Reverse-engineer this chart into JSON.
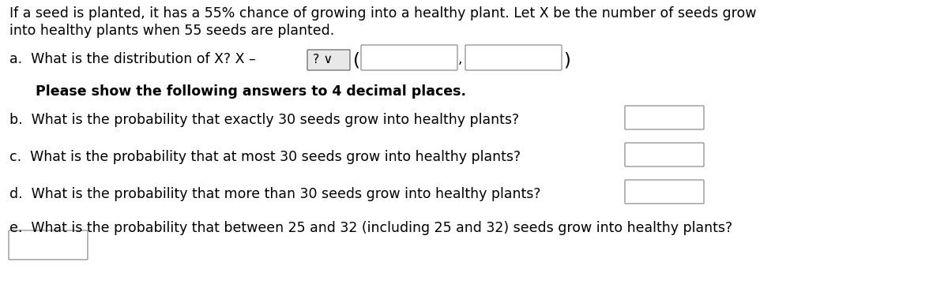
{
  "background_color": "#ffffff",
  "title_line1": "If a seed is planted, it has a 55% chance of growing into a healthy plant. Let X be the number of seeds grow",
  "title_line2": "into healthy plants when 55 seeds are planted.",
  "question_a_text": "a.  What is the distribution of X? X –",
  "dropdown_label": "? ∨",
  "paren_open": "(",
  "paren_close": ")",
  "comma": ",",
  "bold_line": "Please show the following answers to 4 decimal places.",
  "question_b": "b.  What is the probability that exactly 30 seeds grow into healthy plants?",
  "question_c": "c.  What is the probability that at most 30 seeds grow into healthy plants?",
  "question_d": "d.  What is the probability that more than 30 seeds grow into healthy plants?",
  "question_e": "e.  What is the probability that between 25 and 32 (including 25 and 32) seeds grow into healthy plants?",
  "font_size": 12.5,
  "text_color": "#000000",
  "box_edge_color": "#999999",
  "box_face_color": "#ffffff",
  "drop_edge_color": "#777777",
  "drop_face_color": "#e8e8e8"
}
